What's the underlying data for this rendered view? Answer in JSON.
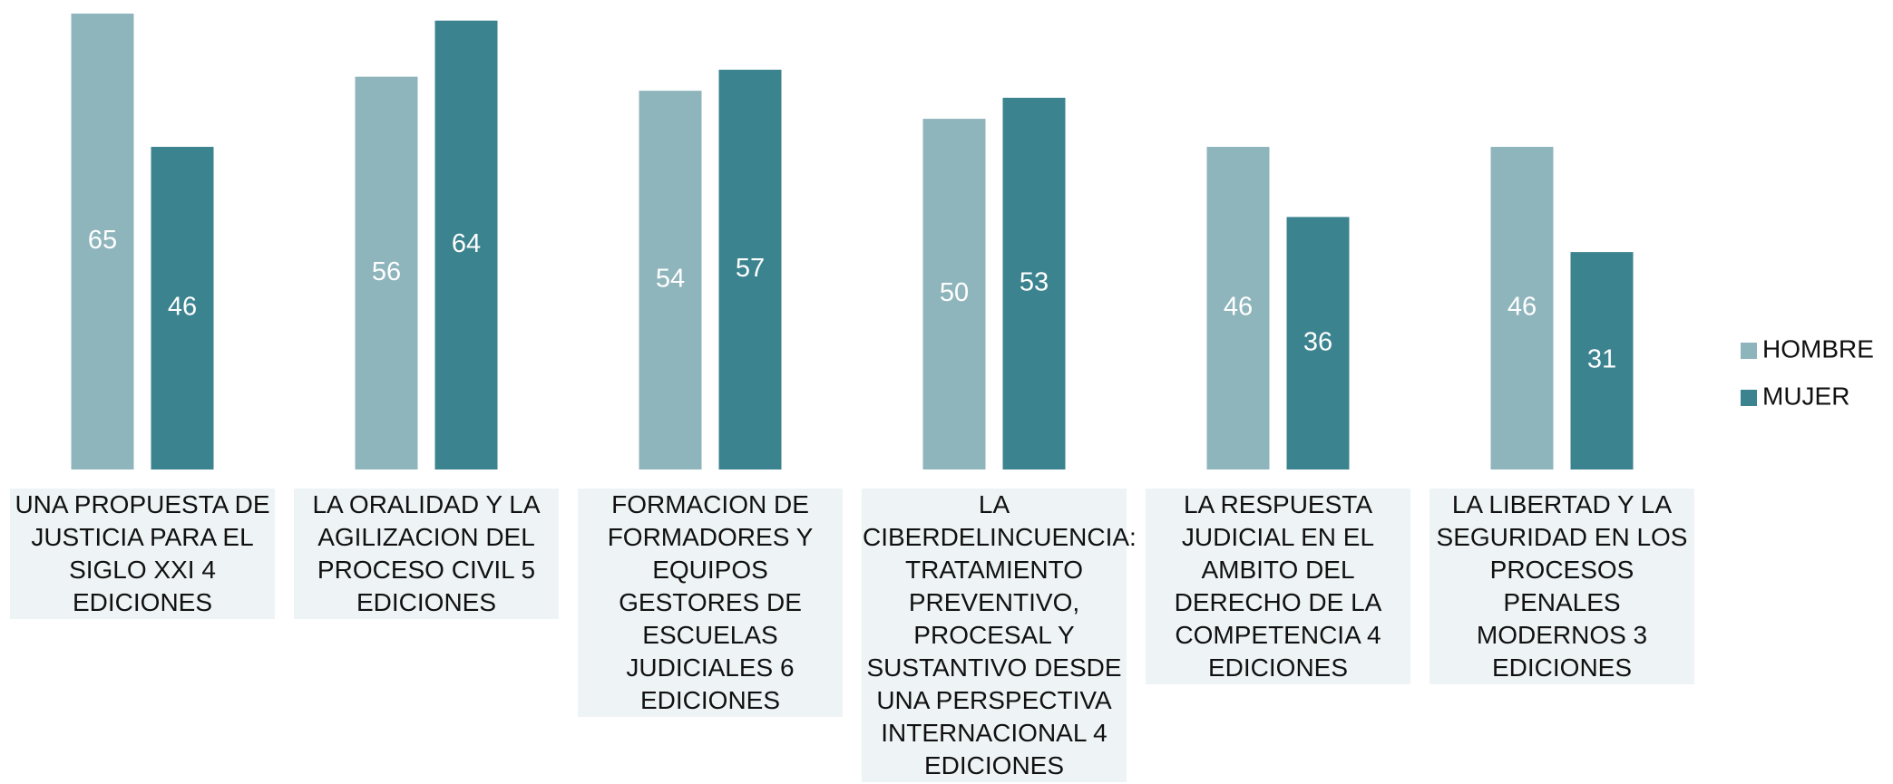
{
  "chart_data": {
    "type": "bar",
    "categories": [
      "UNA PROPUESTA DE JUSTICIA PARA EL SIGLO XXI 4 EDICIONES",
      "LA ORALIDAD Y LA AGILIZACION DEL PROCESO CIVIL 5 EDICIONES",
      "FORMACION DE FORMADORES Y EQUIPOS GESTORES DE ESCUELAS JUDICIALES 6 EDICIONES",
      "LA CIBERDELINCUENCIA: TRATAMIENTO PREVENTIVO, PROCESAL Y SUSTANTIVO DESDE UNA PERSPECTIVA INTERNACIONAL 4 EDICIONES",
      "LA RESPUESTA JUDICIAL EN EL AMBITO DEL DERECHO DE LA COMPETENCIA 4 EDICIONES",
      "LA LIBERTAD Y LA SEGURIDAD EN LOS PROCESOS PENALES MODERNOS 3 EDICIONES"
    ],
    "series": [
      {
        "name": "HOMBRE",
        "color": "#8fb5bc",
        "values": [
          65,
          56,
          54,
          50,
          46,
          46
        ]
      },
      {
        "name": "MUJER",
        "color": "#3b838f",
        "values": [
          46,
          64,
          57,
          53,
          36,
          31
        ]
      }
    ],
    "ylim": [
      0,
      65
    ],
    "legend": "right"
  }
}
